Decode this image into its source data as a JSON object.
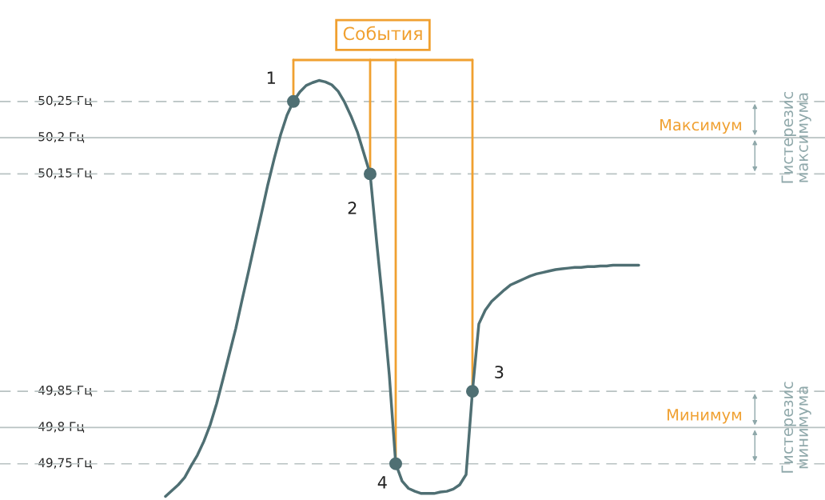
{
  "chart_data": {
    "type": "line",
    "categories": [
      null,
      null,
      null,
      null,
      null,
      null,
      null,
      null,
      null,
      null,
      null,
      null,
      null,
      null,
      null,
      null,
      null,
      null,
      null,
      null,
      null,
      null,
      null,
      null,
      null,
      null,
      null,
      null,
      null,
      null,
      null,
      null,
      null,
      null,
      null,
      null,
      null,
      null,
      null,
      null,
      null,
      null,
      null,
      null,
      null,
      null,
      null,
      null,
      null,
      null,
      null,
      null,
      null,
      null,
      null,
      null,
      null,
      null,
      null,
      null,
      null,
      null,
      null,
      null,
      null,
      null,
      null,
      null,
      null,
      null,
      null,
      null,
      null,
      null,
      null
    ],
    "series": [
      {
        "color": "#4f6f73",
        "values": [
          49.705,
          49.713,
          49.721,
          49.731,
          49.747,
          49.762,
          49.781,
          49.804,
          49.833,
          49.867,
          49.902,
          49.937,
          49.977,
          50.016,
          50.056,
          50.095,
          50.135,
          50.171,
          50.204,
          50.231,
          50.25,
          50.263,
          50.272,
          50.276,
          50.279,
          50.277,
          50.273,
          50.264,
          50.249,
          50.23,
          50.208,
          50.179,
          50.15,
          50.058,
          49.97,
          49.872,
          49.75,
          49.726,
          49.716,
          49.712,
          49.709,
          49.709,
          49.709,
          49.711,
          49.712,
          49.715,
          49.721,
          49.735,
          49.85,
          49.943,
          49.962,
          49.974,
          49.982,
          49.99,
          49.997,
          50.001,
          50.005,
          50.009,
          50.012,
          50.014,
          50.016,
          50.018,
          50.019,
          50.02,
          50.021,
          50.021,
          50.022,
          50.022,
          50.023,
          50.023,
          50.024,
          50.024,
          50.024,
          50.024,
          50.024
        ]
      },
      {
        "type": "scatter",
        "color": "#4f6f73",
        "marker": "circle",
        "values": [
          null,
          null,
          null,
          null,
          null,
          null,
          null,
          null,
          null,
          null,
          null,
          null,
          null,
          null,
          null,
          null,
          null,
          null,
          null,
          null,
          50.25,
          null,
          null,
          null,
          null,
          null,
          null,
          null,
          null,
          null,
          null,
          null,
          50.15,
          null,
          null,
          null,
          49.75,
          null,
          null,
          null,
          null,
          null,
          null,
          null,
          null,
          null,
          null,
          null,
          49.85,
          null,
          null,
          null,
          null,
          null,
          null,
          null,
          null,
          null,
          null,
          null,
          null,
          null,
          null,
          null,
          null,
          null,
          null,
          null,
          null,
          null,
          null,
          null,
          null,
          null,
          null
        ]
      }
    ],
    "ylim": [
      49.7,
      50.39
    ],
    "yticks": [
      {
        "value": 50.25,
        "label": "50,25 Гц"
      },
      {
        "value": 50.2,
        "label": "50,2 Гц"
      },
      {
        "value": 50.15,
        "label": "50,15 Гц"
      },
      {
        "value": 49.85,
        "label": "49,85 Гц"
      },
      {
        "value": 49.8,
        "label": "49,8 Гц"
      },
      {
        "value": 49.75,
        "label": "49,75 Гц"
      }
    ],
    "tick_labels": "y",
    "grid": false,
    "legend": false,
    "ref_lines": [
      {
        "axis": "y",
        "value": 50.25,
        "line_style": "dashed",
        "color": "#b8c2c2"
      },
      {
        "axis": "y",
        "value": 50.2,
        "line_style": "solid",
        "color": "#b8c2c2",
        "label": "Максимум"
      },
      {
        "axis": "y",
        "value": 50.15,
        "line_style": "dashed",
        "color": "#b8c2c2"
      },
      {
        "axis": "y",
        "value": 49.85,
        "line_style": "dashed",
        "color": "#b8c2c2"
      },
      {
        "axis": "y",
        "value": 49.8,
        "line_style": "solid",
        "color": "#b8c2c2",
        "label": "Минимум"
      },
      {
        "axis": "y",
        "value": 49.75,
        "line_style": "dashed",
        "color": "#b8c2c2"
      }
    ],
    "annotations": [
      {
        "text": "1",
        "y": 50.25
      },
      {
        "text": "2",
        "y": 50.15
      },
      {
        "text": "4",
        "y": 49.75
      },
      {
        "text": "3",
        "y": 49.85
      },
      {
        "text": "Гистерезис\nмаксимума",
        "y": 50.2
      },
      {
        "text": "Гистерезис\nминимума",
        "y": 49.8
      },
      "События"
    ]
  }
}
